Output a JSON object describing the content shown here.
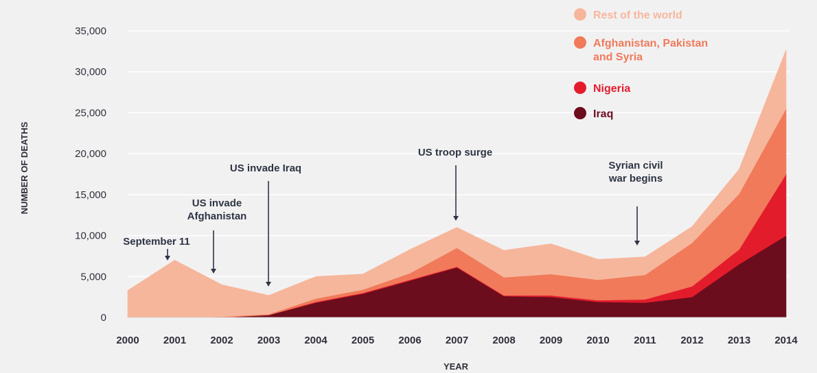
{
  "chart_data": {
    "type": "area",
    "stacked": true,
    "x": [
      2000,
      2001,
      2002,
      2003,
      2004,
      2005,
      2006,
      2007,
      2008,
      2009,
      2010,
      2011,
      2012,
      2013,
      2014
    ],
    "x_tick_labels": [
      "2000",
      "2001",
      "2002",
      "2003",
      "2004",
      "2005",
      "2006",
      "2007",
      "2008",
      "2009",
      "2010",
      "2011",
      "2012",
      "2013",
      "2014"
    ],
    "y_tick_labels": [
      "0",
      "5,000",
      "10,000",
      "15,000",
      "20,000",
      "25,000",
      "30,000",
      "35,000"
    ],
    "y_ticks": [
      0,
      5000,
      10000,
      15000,
      20000,
      25000,
      30000,
      35000
    ],
    "ylim": [
      0,
      35000
    ],
    "xlabel": "YEAR",
    "ylabel": "NUMBER OF DEATHS",
    "grid": true,
    "legend_position": "top-right",
    "series": [
      {
        "name": "Iraq",
        "color": "#6b0d1d",
        "values": [
          0,
          0,
          0,
          300,
          1800,
          2900,
          4500,
          6100,
          2600,
          2500,
          1900,
          1800,
          2500,
          6500,
          10000
        ]
      },
      {
        "name": "Nigeria",
        "color": "#e31c2c",
        "values": [
          0,
          0,
          0,
          0,
          100,
          100,
          100,
          100,
          100,
          200,
          200,
          400,
          1300,
          1800,
          7500
        ]
      },
      {
        "name": "Afghanistan, Pakistan and Syria",
        "color": "#f07a5a",
        "values": [
          0,
          0,
          100,
          100,
          400,
          400,
          800,
          2300,
          2200,
          2600,
          2500,
          3000,
          5300,
          6800,
          8000
        ]
      },
      {
        "name": "Rest of the world",
        "color": "#f6b69b",
        "values": [
          3300,
          7000,
          3900,
          2300,
          2700,
          1900,
          2900,
          2500,
          3300,
          3700,
          2500,
          2200,
          2000,
          3000,
          7200
        ]
      }
    ],
    "legend": [
      {
        "label": "Rest of the world",
        "color": "#f6b69b"
      },
      {
        "label": "Afghanistan, Pakistan and Syria",
        "label_lines": [
          "Afghanistan, Pakistan",
          "and Syria"
        ],
        "color": "#f07a5a"
      },
      {
        "label": "Nigeria",
        "color": "#e31c2c"
      },
      {
        "label": "Iraq",
        "color": "#6b0d1d"
      }
    ],
    "annotations": [
      {
        "lines": [
          "September 11"
        ],
        "x": 2001
      },
      {
        "lines": [
          "US invade",
          "Afghanistan"
        ],
        "x": 2002
      },
      {
        "lines": [
          "US invade Iraq"
        ],
        "x": 2003
      },
      {
        "lines": [
          "US troop surge"
        ],
        "x": 2007
      },
      {
        "lines": [
          "Syrian civil",
          "war begins"
        ],
        "x": 2011
      }
    ]
  }
}
